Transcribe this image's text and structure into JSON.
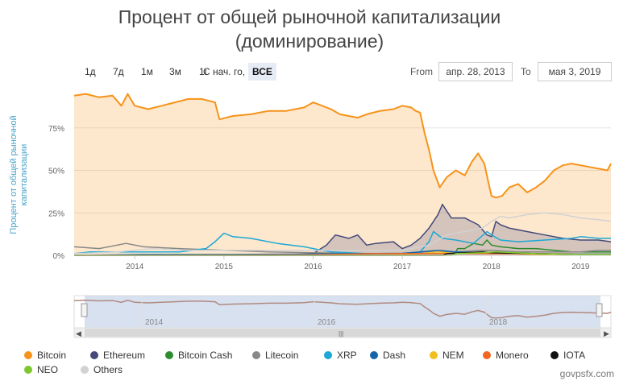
{
  "header": {
    "title_line1": "Процент от общей рыночной капитализации",
    "title_line2": "(доминирование)"
  },
  "range_buttons": [
    {
      "label": "1д",
      "active": false
    },
    {
      "label": "7д",
      "active": false
    },
    {
      "label": "1м",
      "active": false
    },
    {
      "label": "3м",
      "active": false
    },
    {
      "label": "1г",
      "active": false
    },
    {
      "label": "С нач. го,",
      "active": false
    },
    {
      "label": "ВСЕ",
      "active": true
    }
  ],
  "date_range": {
    "from_label": "From",
    "from_value": "апр. 28, 2013",
    "to_label": "To",
    "to_value": "мая 3, 2019"
  },
  "navigator": {
    "years": [
      "2014",
      "2016",
      "2018"
    ],
    "scroll_handle": "|||"
  },
  "watermark": "govpsfx.com",
  "colors": {
    "bitcoin": "#f7931a",
    "ethereum": "#434a7a",
    "bitcoin_cash": "#2e8b2e",
    "litecoin": "#888888",
    "xrp": "#1ba8d6",
    "dash": "#1565a8",
    "nem": "#f0c020",
    "monero": "#f26522",
    "iota": "#111111",
    "neo": "#7cc82e",
    "others": "#d2d2d2"
  },
  "chart_data": {
    "type": "area",
    "title": "Процент от общей рыночной капитализации (доминирование)",
    "xlabel": "",
    "ylabel": "Процент от общей рыночной капитализации",
    "x_ticks": [
      "2014",
      "2015",
      "2016",
      "2017",
      "2018",
      "2019"
    ],
    "y_ticks": [
      "0%",
      "25%",
      "50%",
      "75%"
    ],
    "xlim": [
      2013.32,
      2019.34
    ],
    "ylim": [
      0,
      100
    ],
    "grid": true,
    "legend_position": "bottom",
    "series": [
      {
        "name": "Bitcoin",
        "color": "#f7931a",
        "fill": true,
        "x": [
          2013.32,
          2013.45,
          2013.6,
          2013.75,
          2013.85,
          2013.92,
          2014.0,
          2014.15,
          2014.3,
          2014.45,
          2014.6,
          2014.75,
          2014.9,
          2014.95,
          2015.1,
          2015.3,
          2015.5,
          2015.7,
          2015.9,
          2016.0,
          2016.1,
          2016.2,
          2016.3,
          2016.4,
          2016.5,
          2016.6,
          2016.75,
          2016.9,
          2017.0,
          2017.1,
          2017.15,
          2017.2,
          2017.25,
          2017.3,
          2017.35,
          2017.42,
          2017.5,
          2017.55,
          2017.6,
          2017.7,
          2017.78,
          2017.85,
          2017.92,
          2017.97,
          2018.0,
          2018.05,
          2018.12,
          2018.2,
          2018.3,
          2018.4,
          2018.5,
          2018.6,
          2018.7,
          2018.8,
          2018.9,
          2019.0,
          2019.1,
          2019.2,
          2019.3,
          2019.34
        ],
        "y": [
          94,
          95,
          93,
          94,
          88,
          95,
          88,
          86,
          88,
          90,
          92,
          92,
          90,
          80,
          82,
          83,
          85,
          85,
          87,
          90,
          88,
          86,
          83,
          82,
          81,
          83,
          85,
          86,
          88,
          87,
          85,
          84,
          72,
          62,
          50,
          40,
          46,
          48,
          50,
          47,
          55,
          60,
          54,
          42,
          35,
          34,
          35,
          40,
          42,
          37,
          40,
          44,
          50,
          53,
          54,
          53,
          52,
          51,
          50,
          54
        ]
      },
      {
        "name": "Ethereum",
        "color": "#434a7a",
        "fill": true,
        "x": [
          2013.32,
          2015.6,
          2015.8,
          2016.0,
          2016.15,
          2016.25,
          2016.4,
          2016.5,
          2016.6,
          2016.7,
          2016.9,
          2017.0,
          2017.1,
          2017.2,
          2017.3,
          2017.4,
          2017.45,
          2017.5,
          2017.55,
          2017.7,
          2017.85,
          2017.95,
          2018.0,
          2018.05,
          2018.1,
          2018.2,
          2018.4,
          2018.6,
          2018.8,
          2019.0,
          2019.2,
          2019.34
        ],
        "y": [
          0,
          0,
          0.5,
          1,
          6,
          12,
          10,
          12,
          6,
          7,
          8,
          4,
          6,
          10,
          16,
          24,
          30,
          26,
          22,
          22,
          18,
          12,
          11,
          20,
          18,
          16,
          14,
          12,
          10,
          9,
          9,
          8
        ]
      },
      {
        "name": "Bitcoin Cash",
        "color": "#2e8b2e",
        "fill": false,
        "x": [
          2017.58,
          2017.62,
          2017.7,
          2017.8,
          2017.9,
          2017.95,
          2018.0,
          2018.1,
          2018.3,
          2018.5,
          2018.7,
          2018.9,
          2019.0,
          2019.2,
          2019.34
        ],
        "y": [
          0,
          4,
          4,
          7,
          6,
          9,
          6,
          5,
          4,
          4,
          3,
          2,
          2,
          2,
          2
        ]
      },
      {
        "name": "Litecoin",
        "color": "#888888",
        "fill": false,
        "x": [
          2013.32,
          2013.6,
          2013.9,
          2014.1,
          2014.5,
          2015.0,
          2015.5,
          2016.0,
          2016.5,
          2017.0,
          2017.3,
          2017.6,
          2017.9,
          2018.0,
          2018.3,
          2018.6,
          2018.9,
          2019.0,
          2019.2,
          2019.34
        ],
        "y": [
          5,
          4,
          7,
          5,
          4,
          3,
          2,
          1.5,
          1,
          1,
          2,
          2,
          3,
          3,
          2,
          2,
          2,
          2,
          3,
          3
        ]
      },
      {
        "name": "XRP",
        "color": "#1ba8d6",
        "fill": false,
        "x": [
          2013.32,
          2013.5,
          2014.0,
          2014.5,
          2014.8,
          2014.9,
          2015.0,
          2015.1,
          2015.3,
          2015.6,
          2015.9,
          2016.2,
          2016.6,
          2017.0,
          2017.2,
          2017.3,
          2017.35,
          2017.45,
          2017.6,
          2017.8,
          2017.95,
          2018.0,
          2018.1,
          2018.3,
          2018.6,
          2018.9,
          2019.0,
          2019.2,
          2019.34
        ],
        "y": [
          1,
          2,
          2,
          2,
          4,
          8,
          13,
          11,
          10,
          7,
          5,
          2,
          1,
          1,
          2,
          8,
          14,
          10,
          9,
          7,
          14,
          12,
          9,
          8,
          9,
          10,
          11,
          10,
          10
        ]
      },
      {
        "name": "Dash",
        "color": "#1565a8",
        "fill": false,
        "x": [
          2013.32,
          2014.1,
          2015.0,
          2016.0,
          2016.6,
          2017.0,
          2017.2,
          2017.4,
          2017.6,
          2017.9,
          2018.0,
          2018.5,
          2019.0,
          2019.34
        ],
        "y": [
          0,
          0.5,
          0.5,
          0.8,
          1,
          1.2,
          2,
          3,
          2,
          1.5,
          1.5,
          1,
          0.7,
          0.7
        ]
      },
      {
        "name": "NEM",
        "color": "#f0c020",
        "fill": false,
        "x": [
          2013.32,
          2016.8,
          2017.2,
          2017.4,
          2017.6,
          2018.0,
          2018.5,
          2019.0,
          2019.34
        ],
        "y": [
          0,
          0,
          1,
          2,
          1,
          1.5,
          0.5,
          0.3,
          0.3
        ]
      },
      {
        "name": "Monero",
        "color": "#f26522",
        "fill": false,
        "x": [
          2013.32,
          2015.0,
          2016.0,
          2016.7,
          2017.0,
          2017.5,
          2018.0,
          2018.5,
          2019.0,
          2019.34
        ],
        "y": [
          0,
          0.2,
          0.4,
          1,
          1,
          1,
          1,
          1,
          0.6,
          0.6
        ]
      },
      {
        "name": "IOTA",
        "color": "#111111",
        "fill": false,
        "x": [
          2013.32,
          2017.45,
          2017.5,
          2017.9,
          2018.0,
          2018.5,
          2019.0,
          2019.34
        ],
        "y": [
          0,
          0,
          1,
          2,
          1.5,
          1,
          0.5,
          0.5
        ]
      },
      {
        "name": "NEO",
        "color": "#7cc82e",
        "fill": false,
        "x": [
          2013.32,
          2017.55,
          2017.6,
          2017.9,
          2018.05,
          2018.5,
          2019.0,
          2019.34
        ],
        "y": [
          0,
          0,
          1,
          1.5,
          2,
          1,
          0.5,
          0.5
        ]
      },
      {
        "name": "Others",
        "color": "#d2d2d2",
        "fill": false,
        "x": [
          2013.32,
          2013.8,
          2014.2,
          2014.6,
          2015.0,
          2015.5,
          2016.0,
          2016.5,
          2017.0,
          2017.3,
          2017.5,
          2017.7,
          2017.9,
          2018.0,
          2018.1,
          2018.2,
          2018.4,
          2018.6,
          2018.8,
          2019.0,
          2019.2,
          2019.34
        ],
        "y": [
          1,
          2,
          4,
          3,
          3,
          3,
          3,
          3,
          3,
          6,
          12,
          14,
          16,
          20,
          23,
          22,
          24,
          25,
          24,
          22,
          21,
          20
        ]
      }
    ]
  }
}
